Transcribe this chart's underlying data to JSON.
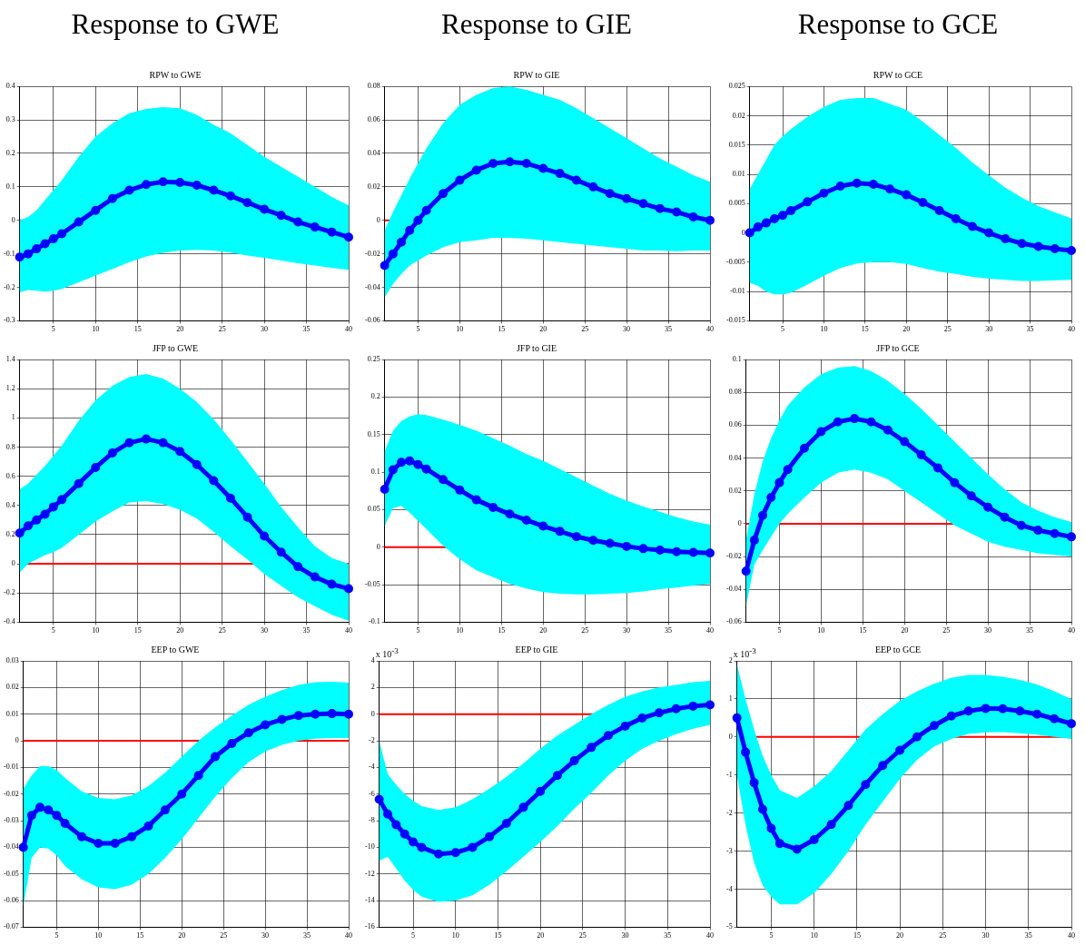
{
  "chart_data": [
    {
      "type": "line",
      "title": "Response to GWE",
      "subtitle": "RPW to GWE",
      "x": [
        1,
        2,
        3,
        4,
        5,
        6,
        8,
        10,
        12,
        14,
        16,
        18,
        20,
        22,
        24,
        26,
        28,
        30,
        32,
        34,
        36,
        38,
        40
      ],
      "xlim": [
        1,
        40
      ],
      "xticks": [
        5,
        10,
        15,
        20,
        25,
        30,
        35,
        40
      ],
      "ylim": [
        -0.3,
        0.4
      ],
      "yticks": [
        -0.3,
        -0.2,
        -0.1,
        0,
        0.1,
        0.2,
        0.3,
        0.4
      ],
      "grid": true,
      "marker": "circle",
      "ref_lines": [
        {
          "axis": "y",
          "value": 0,
          "color": "#ff0000"
        }
      ],
      "series": [
        {
          "color": "#0000ff",
          "values": [
            -0.11,
            -0.1,
            -0.085,
            -0.07,
            -0.055,
            -0.04,
            -0.005,
            0.03,
            0.065,
            0.09,
            0.107,
            0.115,
            0.113,
            0.105,
            0.09,
            0.073,
            0.053,
            0.033,
            0.015,
            -0.005,
            -0.02,
            -0.035,
            -0.05
          ],
          "lower": [
            -0.215,
            -0.208,
            -0.21,
            -0.213,
            -0.21,
            -0.205,
            -0.185,
            -0.165,
            -0.145,
            -0.125,
            -0.108,
            -0.097,
            -0.09,
            -0.088,
            -0.09,
            -0.096,
            -0.105,
            -0.112,
            -0.12,
            -0.128,
            -0.135,
            -0.142,
            -0.148
          ],
          "upper": [
            0.0,
            0.01,
            0.03,
            0.06,
            0.09,
            0.12,
            0.19,
            0.25,
            0.29,
            0.32,
            0.333,
            0.338,
            0.335,
            0.315,
            0.285,
            0.26,
            0.225,
            0.19,
            0.16,
            0.13,
            0.1,
            0.07,
            0.045
          ]
        }
      ]
    },
    {
      "type": "line",
      "title": "Response to GIE",
      "subtitle": "RPW to GIE",
      "x": [
        1,
        2,
        3,
        4,
        5,
        6,
        8,
        10,
        12,
        14,
        16,
        18,
        20,
        22,
        24,
        26,
        28,
        30,
        32,
        34,
        36,
        38,
        40
      ],
      "xlim": [
        1,
        40
      ],
      "xticks": [
        5,
        10,
        15,
        20,
        25,
        30,
        35,
        40
      ],
      "ylim": [
        -0.06,
        0.08
      ],
      "yticks": [
        -0.06,
        -0.04,
        -0.02,
        0,
        0.02,
        0.04,
        0.06,
        0.08
      ],
      "grid": true,
      "marker": "circle",
      "ref_lines": [
        {
          "axis": "y",
          "value": 0,
          "color": "#ff0000"
        }
      ],
      "series": [
        {
          "color": "#0000ff",
          "values": [
            -0.027,
            -0.02,
            -0.013,
            -0.006,
            0.0,
            0.006,
            0.016,
            0.024,
            0.03,
            0.034,
            0.035,
            0.034,
            0.031,
            0.028,
            0.024,
            0.02,
            0.016,
            0.013,
            0.01,
            0.007,
            0.005,
            0.002,
            0.0
          ],
          "lower": [
            -0.046,
            -0.038,
            -0.032,
            -0.027,
            -0.024,
            -0.021,
            -0.016,
            -0.013,
            -0.012,
            -0.0105,
            -0.0105,
            -0.011,
            -0.012,
            -0.013,
            -0.014,
            -0.015,
            -0.016,
            -0.017,
            -0.018,
            -0.018,
            -0.0185,
            -0.018,
            -0.018
          ],
          "upper": [
            -0.006,
            0.005,
            0.015,
            0.025,
            0.034,
            0.043,
            0.058,
            0.069,
            0.075,
            0.079,
            0.08,
            0.078,
            0.075,
            0.072,
            0.067,
            0.061,
            0.055,
            0.049,
            0.043,
            0.037,
            0.032,
            0.027,
            0.023
          ]
        }
      ]
    },
    {
      "type": "line",
      "title": "Response to GCE",
      "subtitle": "RPW to GCE",
      "x": [
        1,
        2,
        3,
        4,
        5,
        6,
        8,
        10,
        12,
        14,
        16,
        18,
        20,
        22,
        24,
        26,
        28,
        30,
        32,
        34,
        36,
        38,
        40
      ],
      "xlim": [
        1,
        40
      ],
      "xticks": [
        5,
        10,
        15,
        20,
        25,
        30,
        35,
        40
      ],
      "ylim": [
        -0.015,
        0.025
      ],
      "yticks": [
        -0.015,
        -0.01,
        -0.005,
        0,
        0.005,
        0.01,
        0.015,
        0.02,
        0.025
      ],
      "grid": true,
      "marker": "circle",
      "series": [
        {
          "color": "#0000ff",
          "values": [
            0.0,
            0.001,
            0.0017,
            0.0024,
            0.003,
            0.0038,
            0.0053,
            0.0068,
            0.008,
            0.0085,
            0.0083,
            0.0075,
            0.0065,
            0.0052,
            0.0038,
            0.0024,
            0.0011,
            0.0,
            -0.001,
            -0.0018,
            -0.0023,
            -0.0027,
            -0.003
          ],
          "lower": [
            -0.0085,
            -0.009,
            -0.01,
            -0.0105,
            -0.0105,
            -0.0102,
            -0.0088,
            -0.0073,
            -0.006,
            -0.0052,
            -0.005,
            -0.005,
            -0.0053,
            -0.006,
            -0.0066,
            -0.007,
            -0.0075,
            -0.0078,
            -0.008,
            -0.0082,
            -0.0082,
            -0.0081,
            -0.008
          ],
          "upper": [
            0.0075,
            0.01,
            0.0125,
            0.015,
            0.0165,
            0.0177,
            0.0198,
            0.0215,
            0.0227,
            0.023,
            0.023,
            0.022,
            0.021,
            0.019,
            0.0167,
            0.0145,
            0.012,
            0.0098,
            0.0077,
            0.006,
            0.0046,
            0.0035,
            0.0025
          ]
        }
      ]
    },
    {
      "type": "line",
      "title": "JFP to GWE",
      "x": [
        1,
        2,
        3,
        4,
        5,
        6,
        8,
        10,
        12,
        14,
        16,
        18,
        20,
        22,
        24,
        26,
        28,
        30,
        32,
        34,
        36,
        38,
        40
      ],
      "xlim": [
        1,
        40
      ],
      "xticks": [
        5,
        10,
        15,
        20,
        25,
        30,
        35,
        40
      ],
      "ylim": [
        -0.4,
        1.4
      ],
      "yticks": [
        -0.4,
        -0.2,
        0,
        0.2,
        0.4,
        0.6,
        0.8,
        1,
        1.2,
        1.4
      ],
      "grid": true,
      "marker": "circle",
      "ref_lines": [
        {
          "axis": "y",
          "value": 0,
          "color": "#ff0000"
        }
      ],
      "series": [
        {
          "color": "#0000ff",
          "values": [
            0.21,
            0.26,
            0.3,
            0.34,
            0.39,
            0.44,
            0.55,
            0.66,
            0.76,
            0.83,
            0.855,
            0.83,
            0.77,
            0.68,
            0.57,
            0.45,
            0.32,
            0.19,
            0.08,
            -0.02,
            -0.09,
            -0.14,
            -0.17
          ],
          "lower": [
            -0.06,
            0.0,
            0.03,
            0.06,
            0.08,
            0.11,
            0.2,
            0.29,
            0.36,
            0.42,
            0.43,
            0.41,
            0.37,
            0.31,
            0.22,
            0.12,
            0.03,
            -0.07,
            -0.15,
            -0.23,
            -0.29,
            -0.35,
            -0.39
          ],
          "upper": [
            0.51,
            0.55,
            0.61,
            0.67,
            0.74,
            0.81,
            0.98,
            1.12,
            1.22,
            1.28,
            1.3,
            1.27,
            1.2,
            1.11,
            0.99,
            0.85,
            0.7,
            0.55,
            0.39,
            0.25,
            0.12,
            0.04,
            0.0
          ]
        }
      ]
    },
    {
      "type": "line",
      "title": "JFP to GIE",
      "x": [
        1,
        2,
        3,
        4,
        5,
        6,
        8,
        10,
        12,
        14,
        16,
        18,
        20,
        22,
        24,
        26,
        28,
        30,
        32,
        34,
        36,
        38,
        40
      ],
      "xlim": [
        1,
        40
      ],
      "xticks": [
        5,
        10,
        15,
        20,
        25,
        30,
        35,
        40
      ],
      "ylim": [
        -0.1,
        0.25
      ],
      "yticks": [
        -0.1,
        -0.05,
        0,
        0.05,
        0.1,
        0.15,
        0.2,
        0.25
      ],
      "grid": true,
      "marker": "circle",
      "ref_lines": [
        {
          "axis": "y",
          "value": 0,
          "color": "#ff0000"
        }
      ],
      "series": [
        {
          "color": "#0000ff",
          "values": [
            0.077,
            0.103,
            0.113,
            0.115,
            0.11,
            0.104,
            0.09,
            0.076,
            0.063,
            0.053,
            0.044,
            0.036,
            0.028,
            0.021,
            0.014,
            0.009,
            0.005,
            0.001,
            -0.002,
            -0.004,
            -0.006,
            -0.007,
            -0.008
          ],
          "lower": [
            0.028,
            0.052,
            0.055,
            0.046,
            0.035,
            0.024,
            0.002,
            -0.016,
            -0.031,
            -0.04,
            -0.049,
            -0.055,
            -0.06,
            -0.062,
            -0.063,
            -0.063,
            -0.062,
            -0.061,
            -0.059,
            -0.056,
            -0.054,
            -0.051,
            -0.049
          ],
          "upper": [
            0.128,
            0.155,
            0.168,
            0.174,
            0.177,
            0.176,
            0.17,
            0.163,
            0.155,
            0.145,
            0.135,
            0.124,
            0.115,
            0.104,
            0.093,
            0.082,
            0.071,
            0.062,
            0.054,
            0.047,
            0.04,
            0.034,
            0.03
          ]
        }
      ]
    },
    {
      "type": "line",
      "title": "JFP to GCE",
      "x": [
        1,
        2,
        3,
        4,
        5,
        6,
        8,
        10,
        12,
        14,
        16,
        18,
        20,
        22,
        24,
        26,
        28,
        30,
        32,
        34,
        36,
        38,
        40
      ],
      "xlim": [
        1,
        40
      ],
      "xticks": [
        5,
        10,
        15,
        20,
        25,
        30,
        35,
        40
      ],
      "ylim": [
        -0.06,
        0.1
      ],
      "yticks": [
        -0.06,
        -0.04,
        -0.02,
        0,
        0.02,
        0.04,
        0.06,
        0.08,
        0.1
      ],
      "grid": true,
      "marker": "circle",
      "ref_lines": [
        {
          "axis": "y",
          "value": 0,
          "color": "#ff0000"
        }
      ],
      "series": [
        {
          "color": "#0000ff",
          "values": [
            -0.029,
            -0.01,
            0.005,
            0.016,
            0.025,
            0.033,
            0.046,
            0.056,
            0.062,
            0.064,
            0.062,
            0.057,
            0.05,
            0.042,
            0.034,
            0.025,
            0.017,
            0.01,
            0.004,
            -0.001,
            -0.004,
            -0.006,
            -0.008
          ],
          "lower": [
            -0.05,
            -0.025,
            -0.016,
            -0.008,
            0.0,
            0.006,
            0.016,
            0.025,
            0.031,
            0.033,
            0.031,
            0.027,
            0.02,
            0.013,
            0.006,
            -0.001,
            -0.006,
            -0.011,
            -0.014,
            -0.016,
            -0.018,
            -0.019,
            -0.02
          ],
          "upper": [
            -0.01,
            0.018,
            0.038,
            0.052,
            0.063,
            0.072,
            0.083,
            0.091,
            0.095,
            0.096,
            0.093,
            0.087,
            0.079,
            0.07,
            0.06,
            0.05,
            0.04,
            0.03,
            0.021,
            0.013,
            0.008,
            0.004,
            0.001
          ]
        }
      ]
    },
    {
      "type": "line",
      "title": "EEP to GWE",
      "x": [
        1,
        2,
        3,
        4,
        5,
        6,
        8,
        10,
        12,
        14,
        16,
        18,
        20,
        22,
        24,
        26,
        28,
        30,
        32,
        34,
        36,
        38,
        40
      ],
      "xlim": [
        1,
        40
      ],
      "xticks": [
        5,
        10,
        15,
        20,
        25,
        30,
        35,
        40
      ],
      "ylim": [
        -0.07,
        0.03
      ],
      "yticks": [
        -0.07,
        -0.06,
        -0.05,
        -0.04,
        -0.03,
        -0.02,
        -0.01,
        0,
        0.01,
        0.02,
        0.03
      ],
      "grid": true,
      "marker": "circle",
      "ref_lines": [
        {
          "axis": "y",
          "value": 0,
          "color": "#ff0000"
        }
      ],
      "series": [
        {
          "color": "#0000ff",
          "values": [
            -0.04,
            -0.028,
            -0.025,
            -0.026,
            -0.028,
            -0.031,
            -0.036,
            -0.0385,
            -0.0385,
            -0.036,
            -0.032,
            -0.026,
            -0.02,
            -0.013,
            -0.006,
            -0.001,
            0.003,
            0.006,
            0.008,
            0.0095,
            0.01,
            0.0102,
            0.01
          ],
          "lower": [
            -0.062,
            -0.044,
            -0.04,
            -0.0405,
            -0.043,
            -0.047,
            -0.052,
            -0.055,
            -0.0557,
            -0.054,
            -0.05,
            -0.044,
            -0.037,
            -0.029,
            -0.021,
            -0.014,
            -0.008,
            -0.004,
            -0.0015,
            0.0,
            0.0008,
            0.001,
            0.001
          ],
          "upper": [
            -0.018,
            -0.013,
            -0.0095,
            -0.0095,
            -0.011,
            -0.014,
            -0.019,
            -0.0215,
            -0.022,
            -0.0205,
            -0.017,
            -0.012,
            -0.006,
            0.0,
            0.005,
            0.0095,
            0.0135,
            0.0165,
            0.019,
            0.021,
            0.022,
            0.0222,
            0.0218
          ]
        }
      ]
    },
    {
      "type": "line",
      "title": "EEP to GIE",
      "annotations": [
        "x 10$^{-3}$"
      ],
      "x": [
        1,
        2,
        3,
        4,
        5,
        6,
        8,
        10,
        12,
        14,
        16,
        18,
        20,
        22,
        24,
        26,
        28,
        30,
        32,
        34,
        36,
        38,
        40
      ],
      "xlim": [
        1,
        40
      ],
      "xticks": [
        5,
        10,
        15,
        20,
        25,
        30,
        35,
        40
      ],
      "ylim": [
        -16,
        4
      ],
      "yticks": [
        -16,
        -14,
        -12,
        -10,
        -8,
        -6,
        -4,
        -2,
        0,
        2,
        4
      ],
      "grid": true,
      "marker": "circle",
      "ref_lines": [
        {
          "axis": "y",
          "value": 0,
          "color": "#ff0000"
        }
      ],
      "series": [
        {
          "color": "#0000ff",
          "values": [
            -6.4,
            -7.5,
            -8.3,
            -9.0,
            -9.6,
            -10.0,
            -10.5,
            -10.4,
            -10.0,
            -9.2,
            -8.2,
            -7.0,
            -5.8,
            -4.6,
            -3.5,
            -2.5,
            -1.6,
            -0.9,
            -0.3,
            0.1,
            0.4,
            0.6,
            0.7
          ],
          "lower": [
            -11.0,
            -10.7,
            -11.6,
            -12.5,
            -13.2,
            -13.7,
            -14.1,
            -14.0,
            -13.6,
            -12.8,
            -11.8,
            -10.7,
            -9.6,
            -8.4,
            -7.1,
            -5.9,
            -4.6,
            -3.5,
            -2.6,
            -2.0,
            -1.5,
            -1.1,
            -0.8
          ],
          "upper": [
            -2.0,
            -4.5,
            -5.3,
            -6.0,
            -6.5,
            -6.9,
            -7.2,
            -7.0,
            -6.4,
            -5.6,
            -4.7,
            -3.7,
            -2.6,
            -1.6,
            -0.8,
            0.0,
            0.7,
            1.3,
            1.7,
            2.0,
            2.2,
            2.4,
            2.5
          ]
        }
      ]
    },
    {
      "type": "line",
      "title": "EEP to GCE",
      "annotations": [
        "x 10$^{-3}$"
      ],
      "x": [
        1,
        2,
        3,
        4,
        5,
        6,
        8,
        10,
        12,
        14,
        16,
        18,
        20,
        22,
        24,
        26,
        28,
        30,
        32,
        34,
        36,
        38,
        40
      ],
      "xlim": [
        1,
        40
      ],
      "xticks": [
        5,
        10,
        15,
        20,
        25,
        30,
        35,
        40
      ],
      "ylim": [
        -5,
        2
      ],
      "yticks": [
        -5,
        -4,
        -3,
        -2,
        -1,
        0,
        1,
        2
      ],
      "grid": true,
      "marker": "circle",
      "ref_lines": [
        {
          "axis": "y",
          "value": 0,
          "color": "#ff0000"
        }
      ],
      "series": [
        {
          "color": "#0000ff",
          "values": [
            0.5,
            -0.4,
            -1.2,
            -1.9,
            -2.4,
            -2.8,
            -2.95,
            -2.7,
            -2.3,
            -1.8,
            -1.25,
            -0.75,
            -0.35,
            0.0,
            0.3,
            0.55,
            0.68,
            0.75,
            0.74,
            0.68,
            0.6,
            0.48,
            0.35
          ],
          "lower": [
            -1.0,
            -2.3,
            -3.3,
            -3.9,
            -4.2,
            -4.4,
            -4.4,
            -4.1,
            -3.6,
            -3.0,
            -2.3,
            -1.7,
            -1.1,
            -0.6,
            -0.25,
            -0.05,
            0.08,
            0.12,
            0.13,
            0.1,
            0.06,
            0.0,
            -0.05
          ],
          "upper": [
            1.9,
            1.0,
            0.2,
            -0.5,
            -1.0,
            -1.4,
            -1.6,
            -1.3,
            -0.9,
            -0.35,
            0.2,
            0.6,
            0.95,
            1.2,
            1.4,
            1.55,
            1.63,
            1.63,
            1.58,
            1.5,
            1.38,
            1.2,
            1.0
          ]
        }
      ]
    }
  ]
}
